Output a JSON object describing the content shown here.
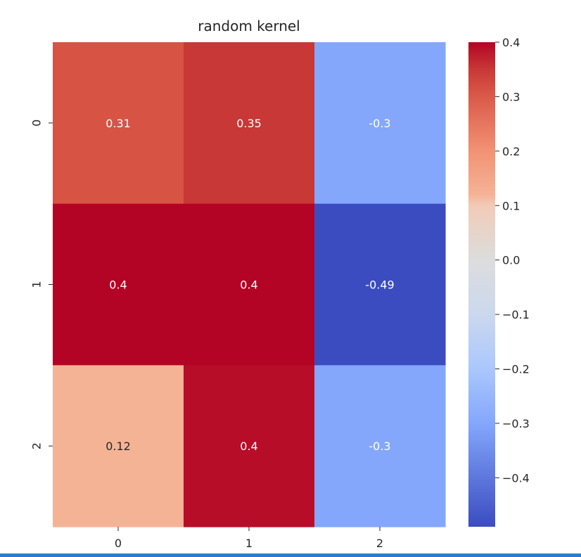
{
  "chart_data": {
    "type": "heatmap",
    "title": "random kernel",
    "colormap": "coolwarm",
    "x_ticks": [
      "0",
      "1",
      "2"
    ],
    "y_ticks": [
      "0",
      "1",
      "2"
    ],
    "values": [
      [
        0.31,
        0.35,
        -0.3
      ],
      [
        0.4,
        0.4,
        -0.49
      ],
      [
        0.12,
        0.4,
        -0.3
      ]
    ],
    "annotations": [
      [
        "0.31",
        "0.35",
        "-0.3"
      ],
      [
        "0.4",
        "0.4",
        "-0.49"
      ],
      [
        "0.12",
        "0.4",
        "-0.3"
      ]
    ],
    "cell_colors": [
      [
        "#d75445",
        "#c83836",
        "#84a7fc"
      ],
      [
        "#b40426",
        "#b40426",
        "#3b4cc0"
      ],
      [
        "#f5b396",
        "#b70d28",
        "#84a7fc"
      ]
    ],
    "annotation_colors": [
      [
        "#ffffff",
        "#ffffff",
        "#ffffff"
      ],
      [
        "#ffffff",
        "#ffffff",
        "#ffffff"
      ],
      [
        "#262626",
        "#ffffff",
        "#ffffff"
      ]
    ],
    "colorbar": {
      "range": [
        -0.49,
        0.4
      ],
      "ticks": [
        0.4,
        0.3,
        0.2,
        0.1,
        0.0,
        -0.1,
        -0.2,
        -0.3,
        -0.4
      ],
      "tick_labels": [
        "0.4",
        "0.3",
        "0.2",
        "0.1",
        "0.0",
        "−0.1",
        "−0.2",
        "−0.3",
        "−0.4"
      ],
      "gradient_stops": [
        {
          "value": -0.49,
          "color": "#3b4cc0"
        },
        {
          "value": -0.3,
          "color": "#84a7fc"
        },
        {
          "value": -0.2,
          "color": "#aac7fd"
        },
        {
          "value": -0.1,
          "color": "#cbd8ee"
        },
        {
          "value": 0.0,
          "color": "#dcdddd"
        },
        {
          "value": 0.1,
          "color": "#f2cbb7"
        },
        {
          "value": 0.12,
          "color": "#f5b396"
        },
        {
          "value": 0.2,
          "color": "#f29274"
        },
        {
          "value": 0.31,
          "color": "#d75445"
        },
        {
          "value": 0.35,
          "color": "#c83836"
        },
        {
          "value": 0.4,
          "color": "#b40426"
        }
      ]
    }
  },
  "frame": {
    "bottom_bar_color": "#2b7bd6"
  }
}
